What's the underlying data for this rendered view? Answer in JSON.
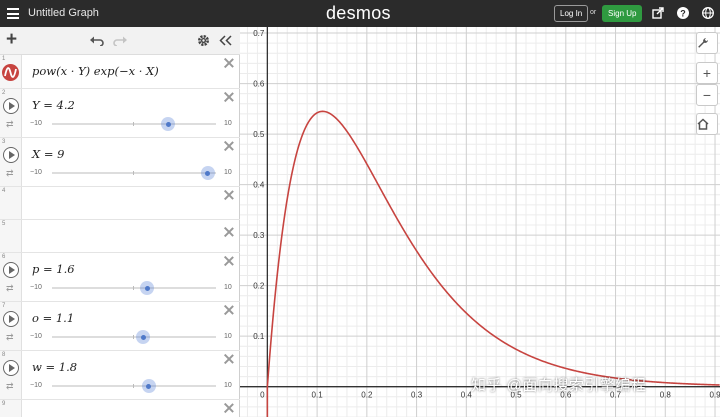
{
  "header": {
    "title": "Untitled Graph",
    "logo": "desmos",
    "login_label": "Log In",
    "or_label": "or",
    "signup_label": "Sign Up"
  },
  "expressions": [
    {
      "num": "1",
      "type": "formula",
      "latex_text": "pow(x · Y)  exp(−x · X)",
      "color": "#c74440"
    },
    {
      "num": "2",
      "type": "slider",
      "label": "Y = 4.2",
      "min": "−10",
      "max": "10",
      "value": 4.2
    },
    {
      "num": "3",
      "type": "slider",
      "label": "X = 9",
      "min": "−10",
      "max": "10",
      "value": 9
    },
    {
      "num": "4",
      "type": "empty"
    },
    {
      "num": "5",
      "type": "empty"
    },
    {
      "num": "6",
      "type": "slider",
      "label": "p = 1.6",
      "min": "−10",
      "max": "10",
      "value": 1.6
    },
    {
      "num": "7",
      "type": "slider",
      "label": "o = 1.1",
      "min": "−10",
      "max": "10",
      "value": 1.1
    },
    {
      "num": "8",
      "type": "slider",
      "label": "w = 1.8",
      "min": "−10",
      "max": "10",
      "value": 1.8
    },
    {
      "num": "9",
      "type": "empty"
    }
  ],
  "chart_data": {
    "type": "line",
    "function": "pow(x·Y)·exp(−x·X), Y=4.2, X=9",
    "x_ticks": [
      "0",
      "0.1",
      "0.2",
      "0.3",
      "0.4",
      "0.5",
      "0.6",
      "0.7",
      "0.8",
      "0.9"
    ],
    "y_ticks": [
      "0.1",
      "0.2",
      "0.3",
      "0.4",
      "0.5",
      "0.6",
      "0.7"
    ],
    "xlim": [
      -0.055,
      0.91
    ],
    "ylim": [
      -0.06,
      0.712
    ],
    "grid": true,
    "series_color": "#c74440",
    "points": [
      {
        "x": 0.0,
        "y": 0.0
      },
      {
        "x": 0.01,
        "y": 0.25
      },
      {
        "x": 0.02,
        "y": 0.36
      },
      {
        "x": 0.05,
        "y": 0.5
      },
      {
        "x": 0.08,
        "y": 0.54
      },
      {
        "x": 0.11,
        "y": 0.545
      },
      {
        "x": 0.15,
        "y": 0.52
      },
      {
        "x": 0.2,
        "y": 0.44
      },
      {
        "x": 0.3,
        "y": 0.27
      },
      {
        "x": 0.4,
        "y": 0.15
      },
      {
        "x": 0.5,
        "y": 0.08
      },
      {
        "x": 0.6,
        "y": 0.045
      },
      {
        "x": 0.7,
        "y": 0.025
      },
      {
        "x": 0.8,
        "y": 0.013
      },
      {
        "x": 0.9,
        "y": 0.007
      }
    ]
  },
  "watermark": "知乎 @面向搜索引擎编程"
}
